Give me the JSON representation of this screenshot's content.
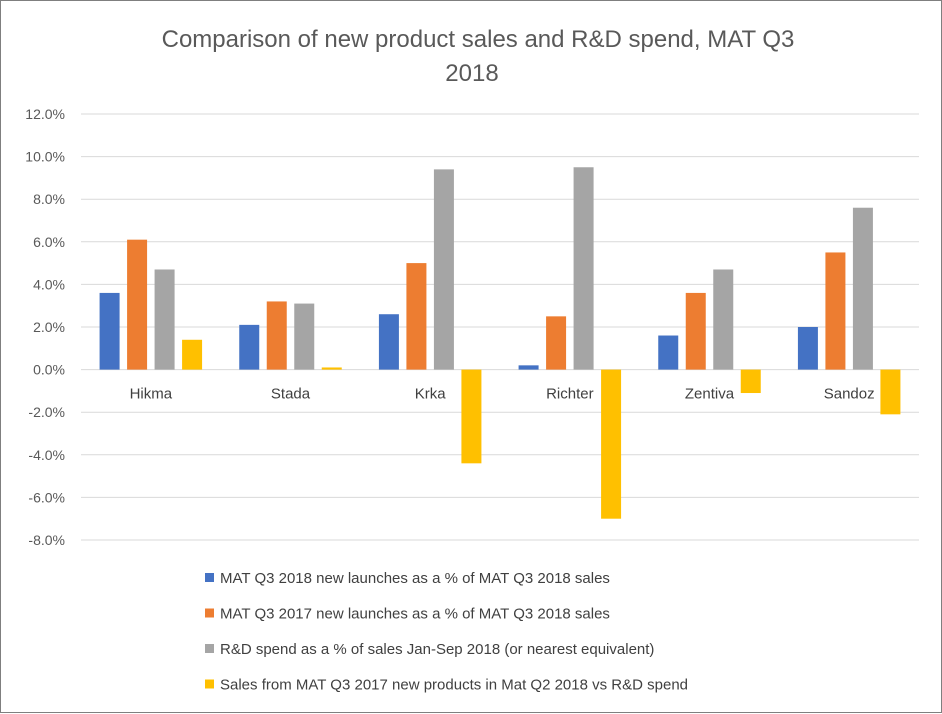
{
  "chart_data": {
    "type": "bar",
    "title_line1": "Comparison of new product sales and R&D spend, MAT Q3",
    "title_line2": "2018",
    "categories": [
      "Hikma",
      "Stada",
      "Krka",
      "Richter",
      "Zentiva",
      "Sandoz"
    ],
    "series": [
      {
        "name": "MAT Q3 2018 new launches as a % of MAT Q3 2018 sales",
        "color": "#4472c4",
        "values": [
          3.6,
          2.1,
          2.6,
          0.2,
          1.6,
          2.0
        ]
      },
      {
        "name": "MAT Q3 2017 new launches as a % of MAT Q3 2018 sales",
        "color": "#ed7d31",
        "values": [
          6.1,
          3.2,
          5.0,
          2.5,
          3.6,
          5.5
        ]
      },
      {
        "name": "R&D spend as a % of sales Jan-Sep 2018 (or nearest equivalent)",
        "color": "#a5a5a5",
        "values": [
          4.7,
          3.1,
          9.4,
          9.5,
          4.7,
          7.6
        ]
      },
      {
        "name": "Sales from MAT Q3 2017 new products in Mat Q2 2018 vs R&D spend",
        "color": "#ffc000",
        "values": [
          1.4,
          0.1,
          -4.4,
          -7.0,
          -1.1,
          -2.1
        ]
      }
    ],
    "ylim": [
      -8.0,
      12.0
    ],
    "yticks": [
      "12.0%",
      "10.0%",
      "8.0%",
      "6.0%",
      "4.0%",
      "2.0%",
      "0.0%",
      "-2.0%",
      "-4.0%",
      "-6.0%",
      "-8.0%"
    ],
    "ytick_values": [
      12,
      10,
      8,
      6,
      4,
      2,
      0,
      -2,
      -4,
      -6,
      -8
    ],
    "grid": true,
    "legend_position": "bottom"
  }
}
